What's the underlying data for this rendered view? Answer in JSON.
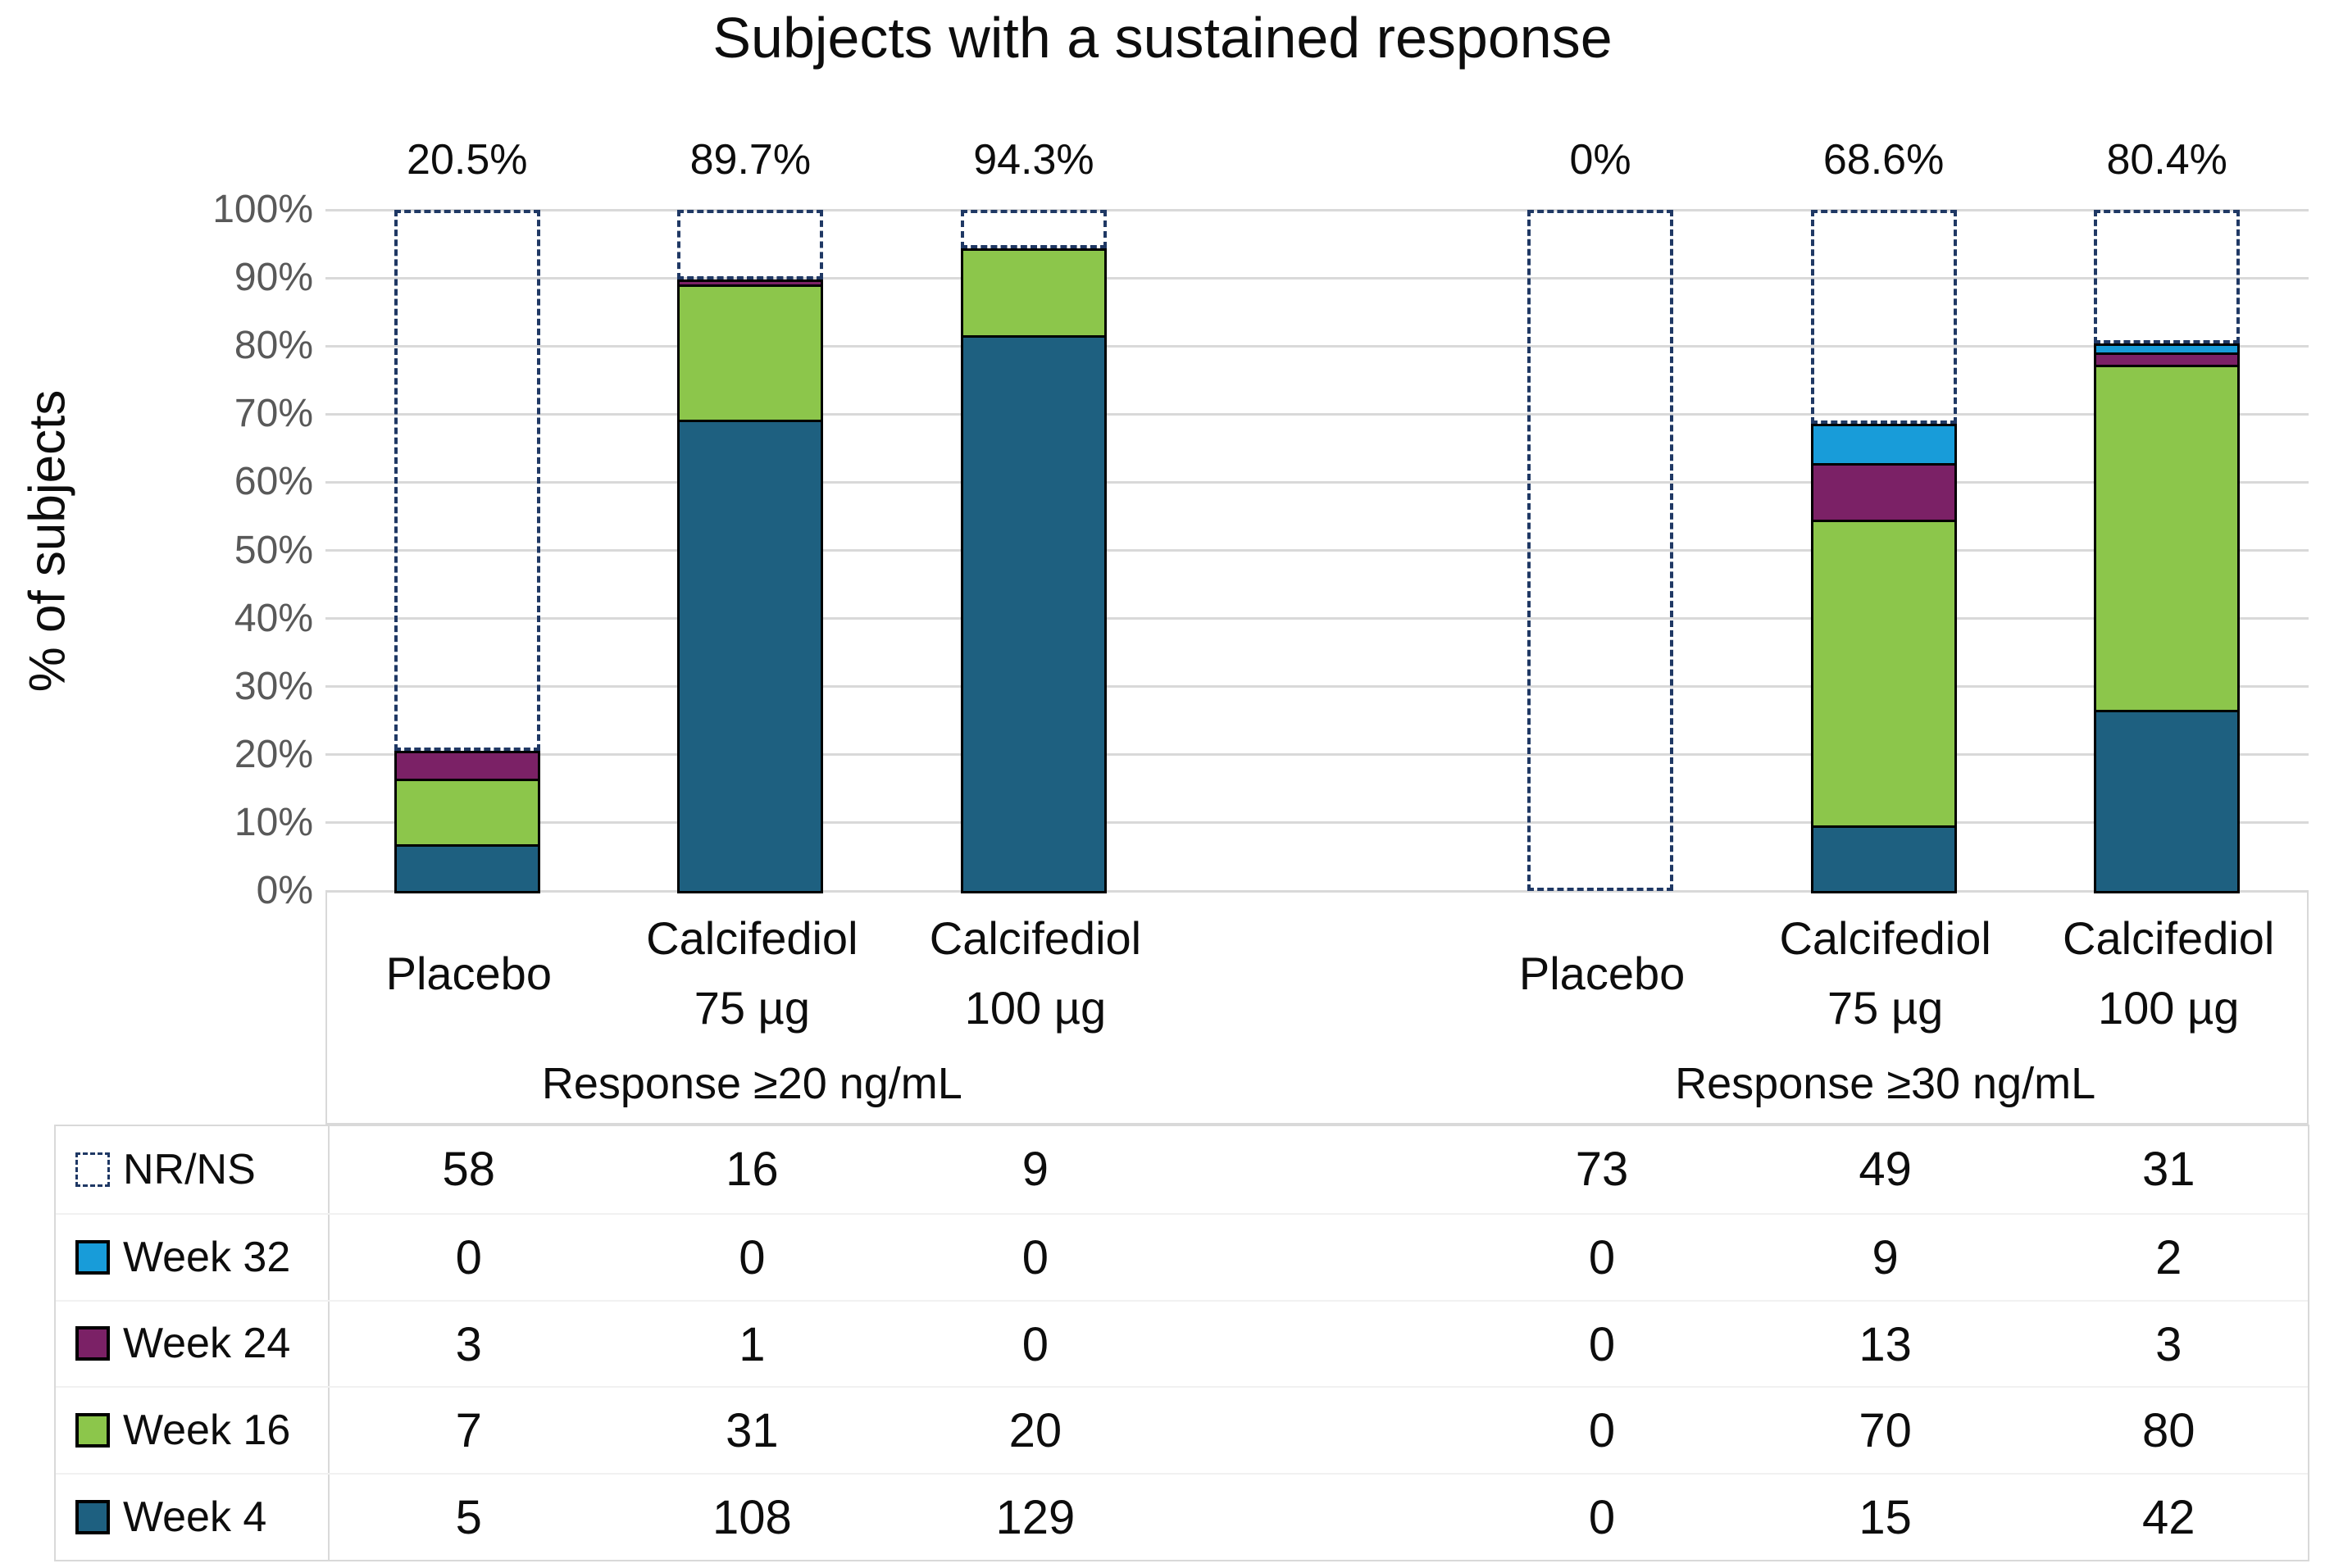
{
  "chart_data": {
    "type": "bar",
    "stacked": true,
    "title": "Subjects with a sustained response",
    "ylabel": "% of subjects",
    "ylim": [
      0,
      100
    ],
    "yticks": [
      "0%",
      "10%",
      "20%",
      "30%",
      "40%",
      "50%",
      "60%",
      "70%",
      "80%",
      "90%",
      "100%"
    ],
    "grid": true,
    "legend_position": "table-left",
    "series_bottom_to_top": [
      "Week 4",
      "Week 16",
      "Week 24",
      "Week 32"
    ],
    "colors": {
      "week4": "#1E6080",
      "week16": "#8CC64B",
      "week24": "#7B2166",
      "week32": "#189CD9",
      "nrns_dash": "#1F3864",
      "gridline": "#D9D9D9",
      "tick_text": "#595959",
      "segment_border": "#000000"
    },
    "group_labels": [
      "Response ≥20 ng/mL",
      "Response ≥30 ng/mL"
    ],
    "category_lines": [
      [
        "Placebo"
      ],
      [
        "Calcifediol",
        "75 µg"
      ],
      [
        "Calcifediol",
        "100 µg"
      ],
      [
        "Placebo"
      ],
      [
        "Calcifediol",
        "75 µg"
      ],
      [
        "Calcifediol",
        "100 µg"
      ]
    ],
    "response_pct_labels": [
      "20.5%",
      "89.7%",
      "94.3%",
      "0%",
      "68.6%",
      "80.4%"
    ],
    "table_rows": [
      {
        "label": "NR/NS",
        "swatch": "dashed",
        "values": [
          58,
          16,
          9,
          73,
          49,
          31
        ]
      },
      {
        "label": "Week 32",
        "swatch": "week32",
        "values": [
          0,
          0,
          0,
          0,
          9,
          2
        ]
      },
      {
        "label": "Week 24",
        "swatch": "week24",
        "values": [
          3,
          1,
          0,
          0,
          13,
          3
        ]
      },
      {
        "label": "Week 16",
        "swatch": "week16",
        "values": [
          7,
          31,
          20,
          0,
          70,
          80
        ]
      },
      {
        "label": "Week 4",
        "swatch": "week4",
        "values": [
          5,
          108,
          129,
          0,
          15,
          42
        ]
      }
    ]
  }
}
